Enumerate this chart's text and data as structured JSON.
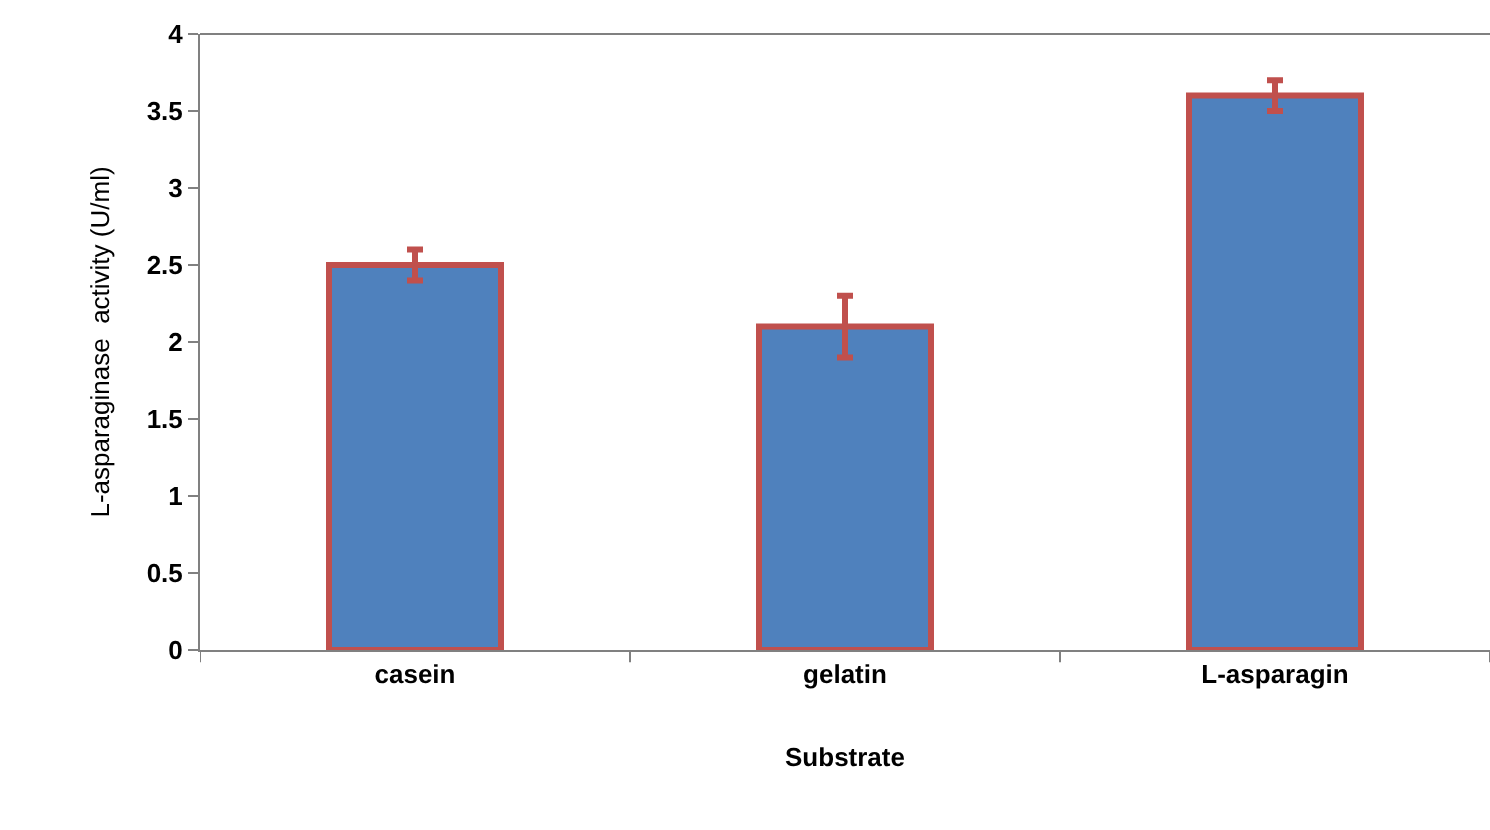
{
  "chart_data": {
    "type": "bar",
    "xlabel": "Substrate",
    "ylabel": "L-asparaginase  activity (U/ml)",
    "categories": [
      "casein",
      "gelatin",
      "L-asparagin"
    ],
    "values": [
      2.5,
      2.1,
      3.6
    ],
    "errors": [
      0.1,
      0.2,
      0.1
    ],
    "color": "#4f81bd",
    "ylim": [
      0,
      4
    ],
    "yticks": [
      0,
      0.5,
      1,
      1.5,
      2,
      2.5,
      3,
      3.5,
      4
    ]
  }
}
